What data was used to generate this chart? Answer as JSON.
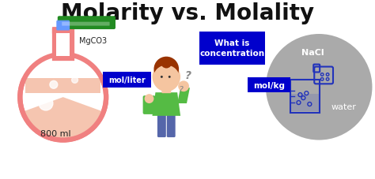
{
  "title": "Molarity vs. Molality",
  "title_fontsize": 20,
  "title_fontweight": "bold",
  "bg_color": "#ffffff",
  "title_color": "#111111",
  "flask_body_color": "#f08080",
  "flask_edge_color": "#f08080",
  "flask_liquid_color": "#f5c5b0",
  "tube_blue_color": "#6699ff",
  "tube_green_color": "#228B22",
  "label_mgco3": "MgCO3",
  "label_mol_liter": "mol/liter",
  "label_800ml": "800 ml",
  "box_blue": "#0000cc",
  "label_what_is": "What is\nconcentration",
  "label_mol_kg": "mol/kg",
  "circle_gray": "#aaaaaa",
  "label_nacl": "NaCl",
  "label_water": "water",
  "white": "#ffffff",
  "beaker_color": "#2233bb",
  "skin_color": "#f5c5a0",
  "hair_color": "#993300",
  "shirt_color": "#55bb44",
  "question_color": "#888888",
  "flask_neck_color": "#f08080"
}
